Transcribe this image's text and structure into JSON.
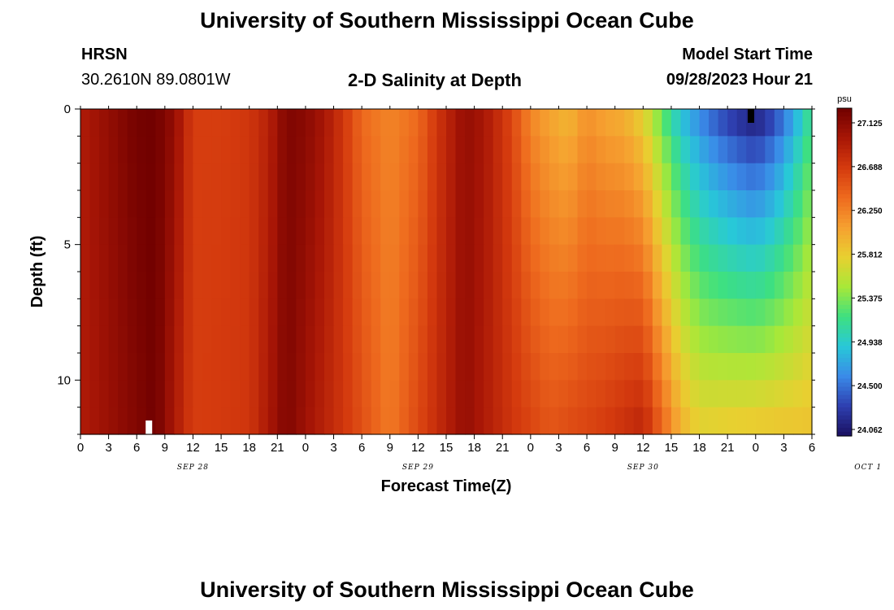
{
  "header": {
    "title": "University of Southern Mississippi Ocean Cube",
    "station": "HRSN",
    "coords": "30.2610N  89.0801W",
    "plot_title": "2-D Salinity at Depth",
    "model_start_label": "Model Start Time",
    "model_start_value": "09/28/2023 Hour 21"
  },
  "footer": {
    "title": "University of Southern Mississippi Ocean Cube"
  },
  "colorbar": {
    "unit": "psu",
    "tick_labels": [
      "27.125",
      "26.688",
      "26.250",
      "25.812",
      "25.375",
      "24.938",
      "24.500",
      "24.062"
    ],
    "colors": [
      "#1a1060",
      "#2e3fb0",
      "#3a8ae8",
      "#28c8d8",
      "#3ee080",
      "#a8e838",
      "#e8d030",
      "#f6a030",
      "#ee6a1e",
      "#d43a0e",
      "#a81606",
      "#700000"
    ]
  },
  "chart_data": {
    "type": "heatmap",
    "xlabel": "Forecast Time(Z)",
    "ylabel": "Depth (ft)",
    "x_tick_labels": [
      "0",
      "3",
      "6",
      "9",
      "12",
      "15",
      "18",
      "21",
      "0",
      "3",
      "6",
      "9",
      "12",
      "15",
      "18",
      "21",
      "0",
      "3",
      "6",
      "9",
      "12",
      "15",
      "18",
      "21",
      "0",
      "3",
      "6"
    ],
    "date_labels": [
      "SEP 28",
      "SEP 29",
      "SEP 30",
      "OCT 1"
    ],
    "y_tick_labels": [
      "0",
      "5",
      "10"
    ],
    "ylim": [
      0,
      12
    ],
    "zlim": [
      24.062,
      27.125
    ],
    "time_range_hours": [
      0,
      78
    ],
    "depth_levels": 12,
    "surface_salinity_profile": [
      {
        "t": 0,
        "v": 26.8
      },
      {
        "t": 3,
        "v": 26.95
      },
      {
        "t": 6,
        "v": 27.1
      },
      {
        "t": 8,
        "v": 27.12
      },
      {
        "t": 10,
        "v": 26.95
      },
      {
        "t": 12,
        "v": 26.55
      },
      {
        "t": 15,
        "v": 26.55
      },
      {
        "t": 18,
        "v": 26.6
      },
      {
        "t": 20,
        "v": 26.75
      },
      {
        "t": 22,
        "v": 27.05
      },
      {
        "t": 24,
        "v": 27.0
      },
      {
        "t": 26,
        "v": 26.85
      },
      {
        "t": 28,
        "v": 26.6
      },
      {
        "t": 30,
        "v": 26.3
      },
      {
        "t": 33,
        "v": 26.15
      },
      {
        "t": 36,
        "v": 26.3
      },
      {
        "t": 38,
        "v": 26.6
      },
      {
        "t": 41,
        "v": 26.95
      },
      {
        "t": 43,
        "v": 26.85
      },
      {
        "t": 46,
        "v": 26.5
      },
      {
        "t": 48,
        "v": 26.15
      },
      {
        "t": 50,
        "v": 26.0
      },
      {
        "t": 52,
        "v": 25.9
      },
      {
        "t": 54,
        "v": 26.1
      },
      {
        "t": 56,
        "v": 26.0
      },
      {
        "t": 58,
        "v": 25.95
      },
      {
        "t": 60,
        "v": 25.75
      },
      {
        "t": 62,
        "v": 25.3
      },
      {
        "t": 64,
        "v": 24.9
      },
      {
        "t": 66,
        "v": 24.65
      },
      {
        "t": 68,
        "v": 24.45
      },
      {
        "t": 70,
        "v": 24.3
      },
      {
        "t": 72,
        "v": 24.2
      },
      {
        "t": 74,
        "v": 24.4
      },
      {
        "t": 76,
        "v": 24.75
      },
      {
        "t": 78,
        "v": 25.2
      }
    ],
    "bottom_salinity_profile": [
      {
        "t": 0,
        "v": 26.8
      },
      {
        "t": 8,
        "v": 27.12
      },
      {
        "t": 12,
        "v": 26.55
      },
      {
        "t": 18,
        "v": 26.6
      },
      {
        "t": 22,
        "v": 27.05
      },
      {
        "t": 28,
        "v": 26.6
      },
      {
        "t": 33,
        "v": 26.2
      },
      {
        "t": 41,
        "v": 26.95
      },
      {
        "t": 46,
        "v": 26.6
      },
      {
        "t": 50,
        "v": 26.4
      },
      {
        "t": 56,
        "v": 26.55
      },
      {
        "t": 60,
        "v": 26.7
      },
      {
        "t": 62,
        "v": 26.3
      },
      {
        "t": 64,
        "v": 25.9
      },
      {
        "t": 66,
        "v": 25.7
      },
      {
        "t": 72,
        "v": 25.75
      },
      {
        "t": 78,
        "v": 25.8
      }
    ],
    "min_marker": {
      "t": 71.5,
      "depth": 0
    },
    "missing_marker": {
      "t": 7.3,
      "depth": 12
    }
  }
}
